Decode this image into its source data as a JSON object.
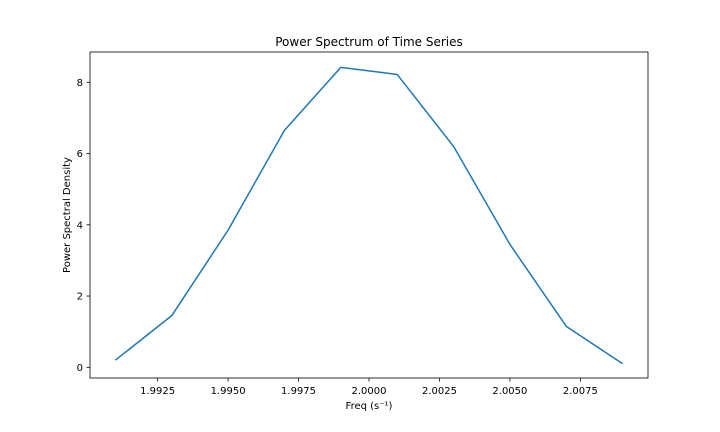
{
  "chart_data": {
    "type": "line",
    "title": "Power Spectrum of Time Series",
    "xlabel": "Freq (s⁻¹)",
    "ylabel": "Power Spectral Density",
    "xlim": [
      1.9901,
      2.0099
    ],
    "ylim": [
      -0.3,
      8.85
    ],
    "x_ticks": [
      1.9925,
      1.995,
      1.9975,
      2.0,
      2.0025,
      2.005,
      2.0075
    ],
    "x_tick_labels": [
      "1.9925",
      "1.9950",
      "1.9975",
      "2.0000",
      "2.0025",
      "2.0050",
      "2.0075"
    ],
    "y_ticks": [
      0,
      2,
      4,
      6,
      8
    ],
    "y_tick_labels": [
      "0",
      "2",
      "4",
      "6",
      "8"
    ],
    "grid": false,
    "series": [
      {
        "color": "#1f77b4",
        "x": [
          1.991,
          1.993,
          1.995,
          1.997,
          1.999,
          2.001,
          2.003,
          2.005,
          2.007,
          2.009
        ],
        "values": [
          0.2,
          1.45,
          3.85,
          6.65,
          8.42,
          8.22,
          6.2,
          3.45,
          1.15,
          0.1
        ]
      }
    ]
  }
}
